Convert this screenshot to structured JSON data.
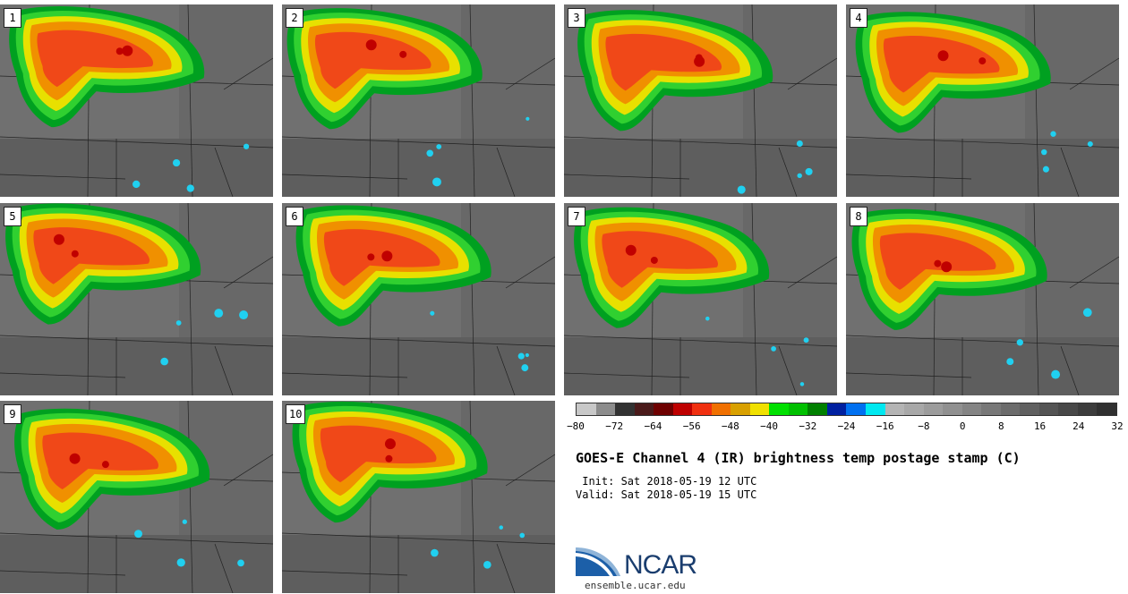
{
  "panels": [
    {
      "label": "1"
    },
    {
      "label": "2"
    },
    {
      "label": "3"
    },
    {
      "label": "4"
    },
    {
      "label": "5"
    },
    {
      "label": "6"
    },
    {
      "label": "7"
    },
    {
      "label": "8"
    },
    {
      "label": "9"
    },
    {
      "label": "10"
    }
  ],
  "colorbar": {
    "colors": [
      "#c8c8c8",
      "#8c8c8c",
      "#323232",
      "#4a1a1a",
      "#6e0000",
      "#be0000",
      "#f03010",
      "#f07000",
      "#d8a000",
      "#f0e000",
      "#00e000",
      "#00c000",
      "#008000",
      "#0020a0",
      "#0070f0",
      "#00e8f0",
      "#b4b4b4",
      "#a8a8a8",
      "#9c9c9c",
      "#909090",
      "#848484",
      "#787878",
      "#6c6c6c",
      "#606060",
      "#545454",
      "#484848",
      "#3c3c3c",
      "#303030"
    ],
    "ticks": [
      "−80",
      "−72",
      "−64",
      "−56",
      "−48",
      "−40",
      "−32",
      "−24",
      "−16",
      "−8",
      "0",
      "8",
      "16",
      "24",
      "32"
    ]
  },
  "title": "GOES-E Channel 4 (IR) brightness temp postage stamp (C)",
  "init_line": " Init: Sat 2018-05-19 12 UTC",
  "valid_line": "Valid: Sat 2018-05-19 15 UTC",
  "logo": {
    "name": "NCAR",
    "url": "ensemble.ucar.edu"
  }
}
